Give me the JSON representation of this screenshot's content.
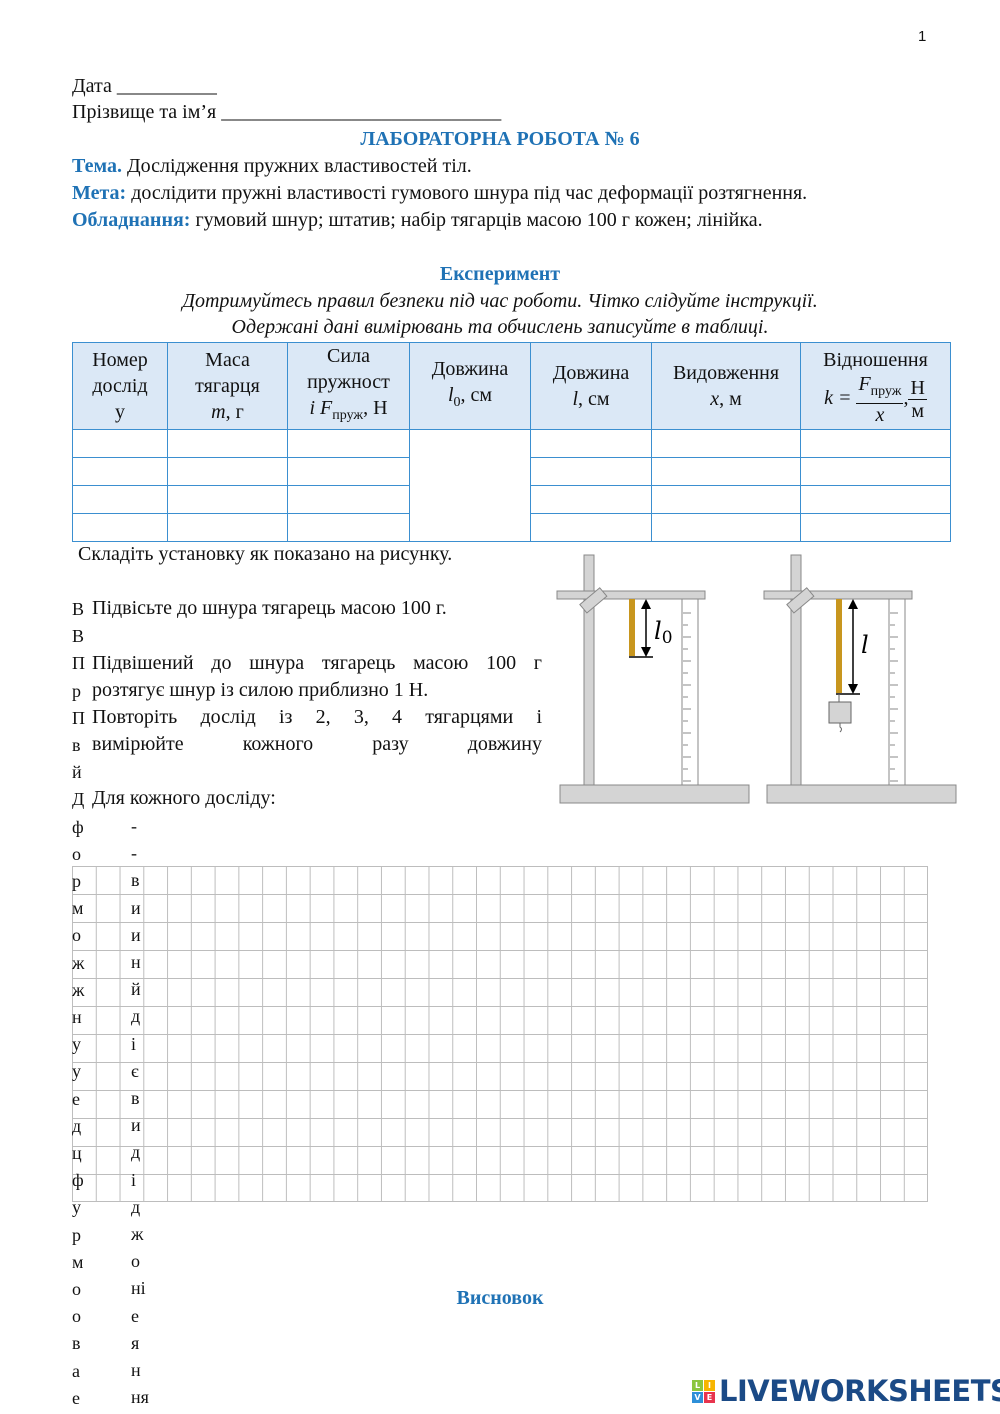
{
  "page_number": "1",
  "header": {
    "date_label": "Дата __________",
    "name_label": "Прізвище та ім’я ____________________________",
    "title": "ЛАБОРАТОРНА РОБОТА № 6",
    "topic_label": "Тема.",
    "topic_text": " Дослідження пружних властивостей тіл.",
    "goal_label": "Мета:",
    "goal_text": " дослідити пружні властивості гумового шнура під час деформації розтягнення.",
    "equipment_label": "Обладнання:",
    "equipment_text": " гумовий шнур; штатив; набір тягарців масою 100 г кожен; лінійка."
  },
  "experiment": {
    "heading": "Експеримент",
    "note_1": "Дотримуйтесь правил безпеки під час роботи. Чітко слідуйте інструкції.",
    "note_2": "Одержані дані вимірювань та обчислень записуйте в таблиці."
  },
  "table": {
    "headers": {
      "c1": [
        "Номер",
        "дослід",
        "у"
      ],
      "c2": [
        "Маса",
        "тягарця",
        "m",
        ", г"
      ],
      "c3": [
        "Сила",
        "пружност",
        "і F",
        "пруж",
        ", Н"
      ],
      "c4": [
        "Довжина",
        "l",
        "0",
        ", см"
      ],
      "c5": [
        "Довжина",
        "l",
        ", см"
      ],
      "c6": [
        "Видовження",
        "x",
        ", м"
      ],
      "c7": [
        "Відношення",
        "k = ",
        "F",
        "пруж",
        "x",
        "Н",
        "м"
      ]
    },
    "rows": 4
  },
  "instructions": {
    "step_1": "Складіть установку як показано на рисунку.",
    "step_2": "Підвісьте до шнура тягарець масою 100 г.",
    "step_3a": "Підвішений до шнура тягарець масою 100 г",
    "step_3b": "розтягує шнур із силою приблизно 1 Н.",
    "step_4a": "Повторіть дослід із 2, 3, 4 тягарцями і",
    "step_4b": "вимірюйте кожного разу довжину",
    "step_5": "Для кожного досліду:"
  },
  "figure": {
    "label_left": "l0",
    "label_right": "l",
    "cord_color": "#c8961e",
    "stand_color": "#d4d4d4"
  },
  "overflow_text": {
    "col_1": [
      "В",
      "В",
      "П",
      "р",
      "П",
      "в",
      "й",
      "Д",
      "ф",
      "о",
      "р",
      "м",
      "о",
      "ж",
      "ж",
      "н",
      "у",
      "у",
      "е",
      "д",
      "ц",
      "ф",
      "у",
      "р",
      "м",
      "о",
      "о",
      "в",
      "а",
      "е"
    ],
    "col_2": [
      "-",
      "-",
      "в",
      "и",
      "и",
      "н",
      "й",
      "д",
      "і",
      "є",
      "в",
      "и",
      "д",
      "і",
      "д",
      "ж",
      "о",
      "ні",
      "е",
      "я",
      "н",
      "ня"
    ]
  },
  "conclusion": {
    "heading": "Висновок"
  },
  "branding": {
    "logo_text": "LIVEWORKSHEETS",
    "logo_letters": [
      "L",
      "I",
      "V",
      "E"
    ]
  }
}
